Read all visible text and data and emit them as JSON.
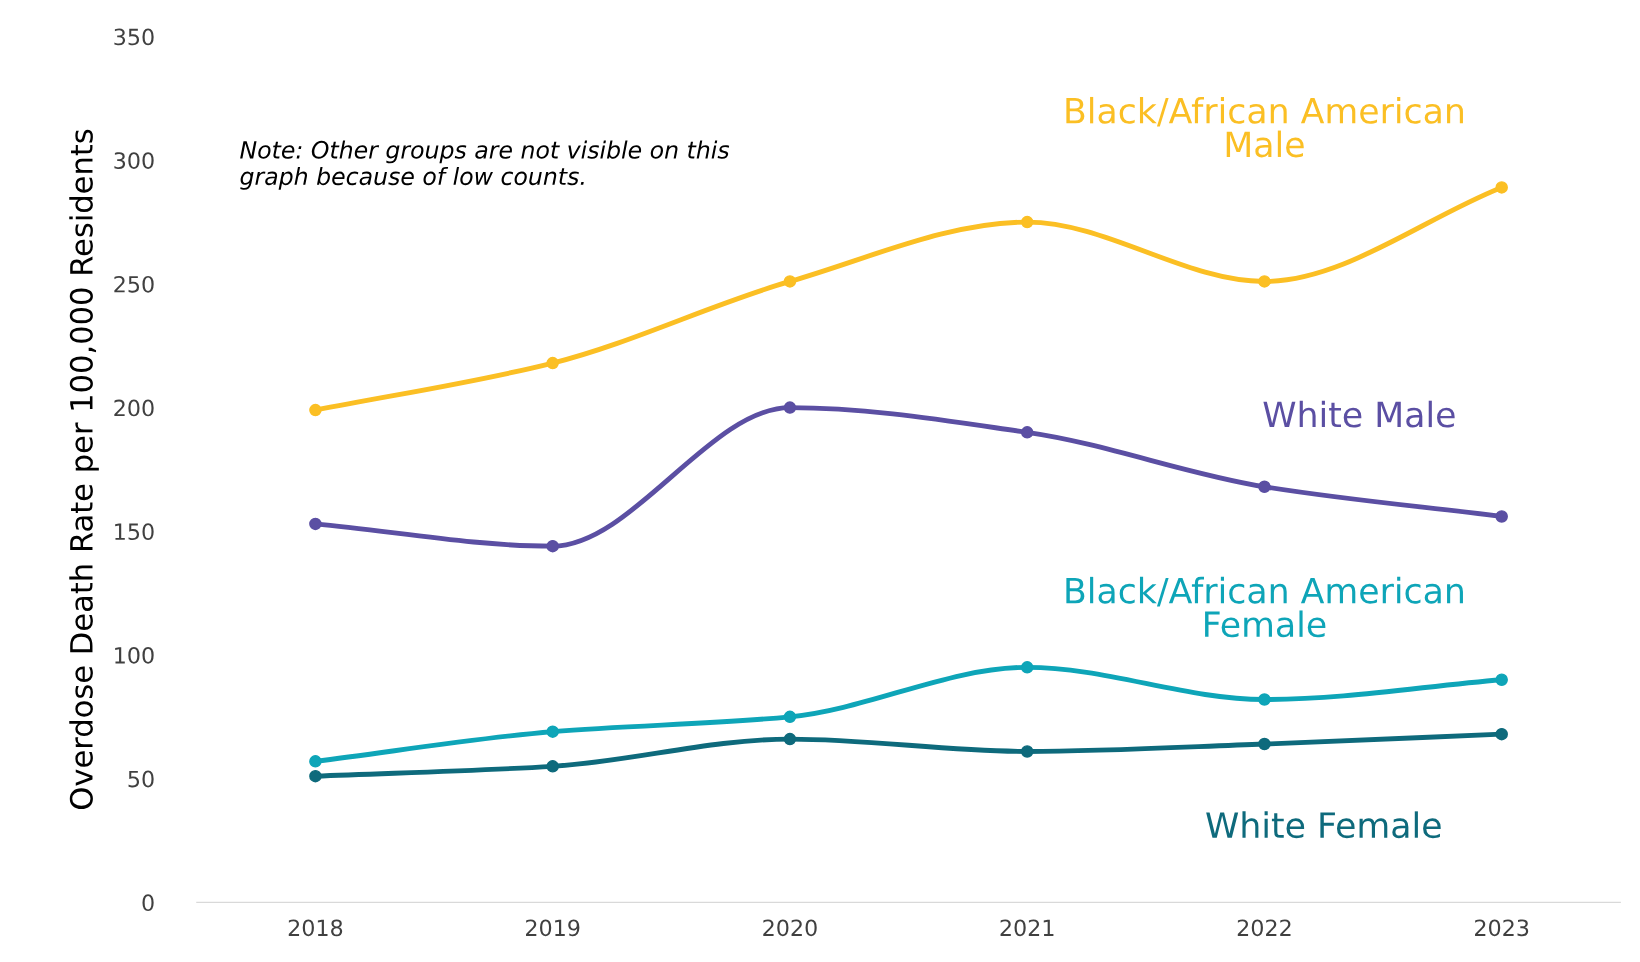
{
  "chart_data": {
    "type": "line",
    "ylabel": "Overdose Death Rate per 100,000 Residents",
    "categories": [
      "2018",
      "2019",
      "2020",
      "2021",
      "2022",
      "2023"
    ],
    "series": [
      {
        "name": "Black/African American\nMale",
        "color": "#fbbf24",
        "values": [
          199,
          218,
          251,
          275,
          251,
          289
        ]
      },
      {
        "name": "White Male",
        "color": "#5b4fa3",
        "values": [
          153,
          144,
          200,
          190,
          168,
          156
        ]
      },
      {
        "name": "Black/African American\nFemale",
        "color": "#0ea5b8",
        "values": [
          57,
          69,
          75,
          95,
          82,
          90
        ]
      },
      {
        "name": "White Female",
        "color": "#0e6a7c",
        "values": [
          51,
          55,
          66,
          61,
          64,
          68
        ]
      }
    ],
    "ylim": [
      0,
      350
    ],
    "yticks": [
      0,
      50,
      100,
      150,
      200,
      250,
      300,
      350
    ],
    "annotations": [
      "Note: Other groups are not visible on this\ngraph because of low counts."
    ],
    "marker": "circle",
    "line_style": "solid",
    "grid": false,
    "legend": false
  }
}
